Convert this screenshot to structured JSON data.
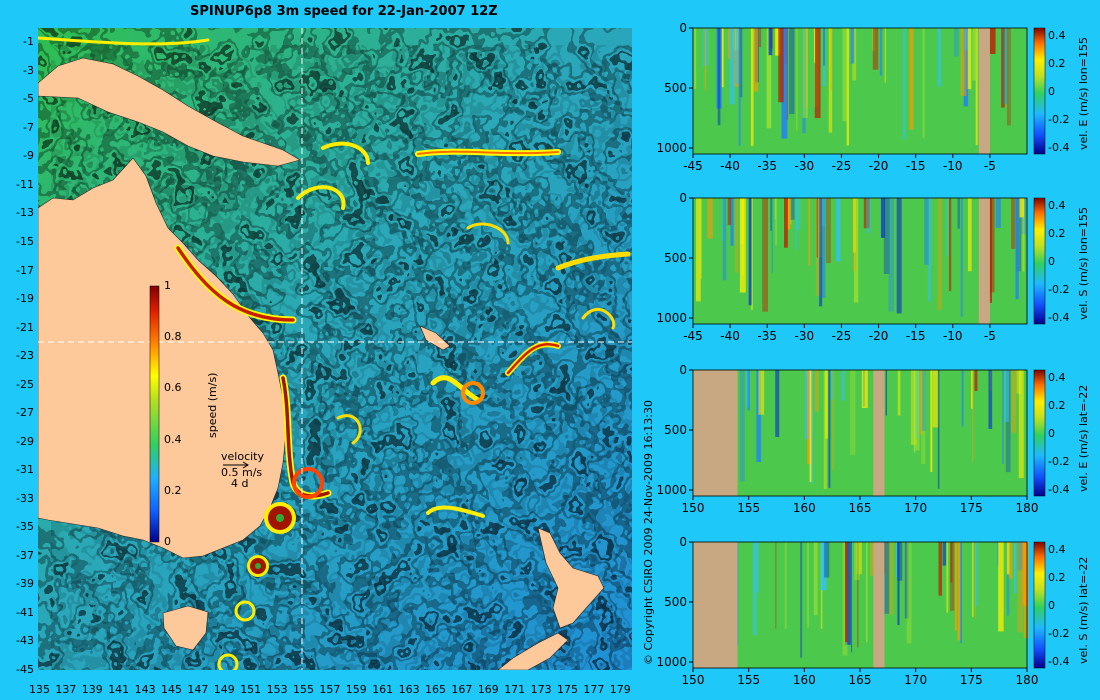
{
  "title": "SPINUP6p8 3m speed for 22-Jan-2007 12Z",
  "copyright": "© Copyright CSIRO 2009   24-Nov-2009 16:13:30",
  "colors": {
    "background": "#1ec8f8",
    "land": "#fdc89a",
    "profile_land": "#c8a882",
    "crosshair": "#ffffff"
  },
  "chart_data": [
    {
      "type": "heatmap",
      "name": "map",
      "title": "SPINUP6p8 3m speed for 22-Jan-2007 12Z",
      "x_ticks": [
        "135",
        "137",
        "139",
        "141",
        "143",
        "145",
        "147",
        "149",
        "151",
        "153",
        "155",
        "157",
        "159",
        "161",
        "163",
        "165",
        "167",
        "169",
        "171",
        "173",
        "175",
        "177",
        "179"
      ],
      "y_ticks": [
        "-1",
        "-3",
        "-5",
        "-7",
        "-9",
        "-11",
        "-13",
        "-15",
        "-17",
        "-19",
        "-21",
        "-23",
        "-25",
        "-27",
        "-29",
        "-31",
        "-33",
        "-35",
        "-37",
        "-39",
        "-41",
        "-43",
        "-45"
      ],
      "xlim": [
        135,
        180
      ],
      "ylim": [
        -45,
        0
      ],
      "crosshair": {
        "lon": 155,
        "lat": -22
      },
      "colorbar": {
        "label": "speed (m/s)",
        "ticks": [
          "0",
          "0.2",
          "0.4",
          "0.6",
          "0.8",
          "1"
        ],
        "range": [
          0,
          1
        ]
      },
      "velocity_key": {
        "label": "velocity",
        "value": "0.5 m/s",
        "duration": "4 d"
      }
    },
    {
      "type": "heatmap",
      "name": "lon155-E",
      "colorbar_label": "vel. E (m/s) lon=155",
      "x_ticks": [
        "-45",
        "-40",
        "-35",
        "-30",
        "-25",
        "-20",
        "-15",
        "-10",
        "-5"
      ],
      "xlim": [
        -45,
        0
      ],
      "y_ticks": [
        "0",
        "500",
        "1000"
      ],
      "ylim": [
        0,
        1050
      ],
      "colorbar_ticks": [
        "0.4",
        "0.2",
        "0",
        "-0.2",
        "-0.4"
      ],
      "land_bands": [
        [
          -6.5,
          -5
        ]
      ]
    },
    {
      "type": "heatmap",
      "name": "lon155-S",
      "colorbar_label": "vel. S (m/s) lon=155",
      "x_ticks": [
        "-45",
        "-40",
        "-35",
        "-30",
        "-25",
        "-20",
        "-15",
        "-10",
        "-5"
      ],
      "xlim": [
        -45,
        0
      ],
      "y_ticks": [
        "0",
        "500",
        "1000"
      ],
      "ylim": [
        0,
        1050
      ],
      "colorbar_ticks": [
        "0.4",
        "0.2",
        "0",
        "-0.2",
        "-0.4"
      ],
      "land_bands": [
        [
          -6.5,
          -5
        ]
      ]
    },
    {
      "type": "heatmap",
      "name": "lat22-E",
      "colorbar_label": "vel. E (m/s) lat=-22",
      "x_ticks": [
        "150",
        "155",
        "160",
        "165",
        "170",
        "175",
        "180"
      ],
      "xlim": [
        150,
        180
      ],
      "y_ticks": [
        "0",
        "500",
        "1000"
      ],
      "ylim": [
        0,
        1050
      ],
      "colorbar_ticks": [
        "0.4",
        "0.2",
        "0",
        "-0.2",
        "-0.4"
      ],
      "land_bands": [
        [
          150,
          154
        ],
        [
          166.2,
          167.2
        ]
      ]
    },
    {
      "type": "heatmap",
      "name": "lat22-S",
      "colorbar_label": "vel. S (m/s) lat=-22",
      "x_ticks": [
        "150",
        "155",
        "160",
        "165",
        "170",
        "175",
        "180"
      ],
      "xlim": [
        150,
        180
      ],
      "y_ticks": [
        "0",
        "500",
        "1000"
      ],
      "ylim": [
        0,
        1050
      ],
      "colorbar_ticks": [
        "0.4",
        "0.2",
        "0",
        "-0.2",
        "-0.4"
      ],
      "land_bands": [
        [
          150,
          154
        ],
        [
          166.2,
          167.2
        ]
      ]
    }
  ]
}
